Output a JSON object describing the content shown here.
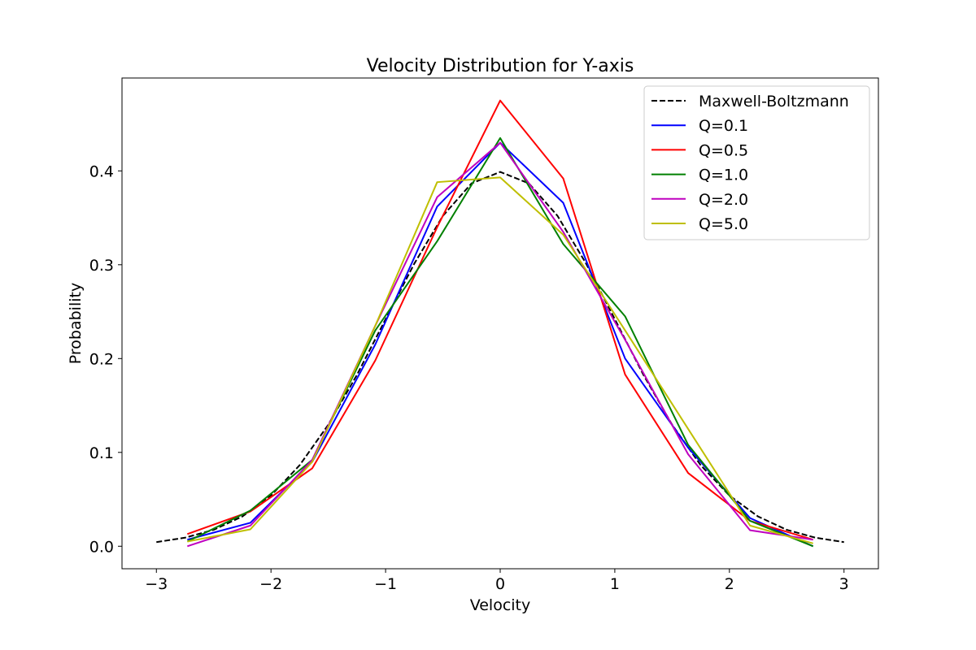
{
  "chart_data": {
    "type": "line",
    "title": "Velocity Distribution for Y-axis",
    "xlabel": "Velocity",
    "ylabel": "Probability",
    "xlim": [
      -3.3,
      3.3
    ],
    "ylim": [
      -0.024,
      0.499
    ],
    "xticks": [
      -3,
      -2,
      -1,
      0,
      1,
      2,
      3
    ],
    "xtick_labels": [
      "−3",
      "−2",
      "−1",
      "0",
      "1",
      "2",
      "3"
    ],
    "yticks": [
      0.0,
      0.1,
      0.2,
      0.3,
      0.4
    ],
    "ytick_labels": [
      "0.0",
      "0.1",
      "0.2",
      "0.3",
      "0.4"
    ],
    "grid": false,
    "legend_position": "top-right",
    "series": [
      {
        "name": "Maxwell-Boltzmann",
        "color": "#000000",
        "dashed": true,
        "x": [
          -3.0,
          -2.75,
          -2.5,
          -2.25,
          -2.0,
          -1.75,
          -1.5,
          -1.25,
          -1.0,
          -0.75,
          -0.5,
          -0.25,
          0.0,
          0.25,
          0.5,
          0.75,
          1.0,
          1.25,
          1.5,
          1.75,
          2.0,
          2.25,
          2.5,
          2.75,
          3.0
        ],
        "y": [
          0.0044,
          0.0091,
          0.0175,
          0.0317,
          0.054,
          0.0863,
          0.1295,
          0.1826,
          0.242,
          0.3011,
          0.3521,
          0.3867,
          0.3989,
          0.3867,
          0.3521,
          0.3011,
          0.242,
          0.1826,
          0.1295,
          0.0863,
          0.054,
          0.0317,
          0.0175,
          0.0091,
          0.0044
        ]
      },
      {
        "name": "Q=0.1",
        "color": "#0000ff",
        "dashed": false,
        "x": [
          -2.73,
          -2.18,
          -1.64,
          -1.09,
          -0.55,
          0.0,
          0.55,
          1.09,
          1.64,
          2.18,
          2.73
        ],
        "y": [
          0.007,
          0.025,
          0.09,
          0.215,
          0.362,
          0.43,
          0.366,
          0.2,
          0.105,
          0.03,
          0.0
        ]
      },
      {
        "name": "Q=0.5",
        "color": "#ff0000",
        "dashed": false,
        "x": [
          -2.73,
          -2.18,
          -1.64,
          -1.09,
          -0.55,
          0.0,
          0.55,
          1.09,
          1.64,
          2.18,
          2.73
        ],
        "y": [
          0.013,
          0.037,
          0.083,
          0.198,
          0.34,
          0.475,
          0.392,
          0.183,
          0.078,
          0.027,
          0.007
        ]
      },
      {
        "name": "Q=1.0",
        "color": "#008000",
        "dashed": false,
        "x": [
          -2.73,
          -2.18,
          -1.64,
          -1.09,
          -0.55,
          0.0,
          0.55,
          1.09,
          1.64,
          2.18,
          2.73
        ],
        "y": [
          0.005,
          0.038,
          0.092,
          0.23,
          0.325,
          0.435,
          0.322,
          0.245,
          0.108,
          0.027,
          0.0
        ]
      },
      {
        "name": "Q=2.0",
        "color": "#bf00bf",
        "dashed": false,
        "x": [
          -2.73,
          -2.18,
          -1.64,
          -1.09,
          -0.55,
          0.0,
          0.55,
          1.09,
          1.64,
          2.18,
          2.73
        ],
        "y": [
          0.0,
          0.022,
          0.092,
          0.235,
          0.372,
          0.43,
          0.335,
          0.22,
          0.098,
          0.017,
          0.007
        ]
      },
      {
        "name": "Q=5.0",
        "color": "#bfbf00",
        "dashed": false,
        "x": [
          -2.73,
          -2.18,
          -1.64,
          -1.09,
          -0.55,
          0.0,
          0.55,
          1.09,
          1.64,
          2.18,
          2.73
        ],
        "y": [
          0.005,
          0.018,
          0.09,
          0.235,
          0.388,
          0.393,
          0.332,
          0.23,
          0.125,
          0.022,
          0.003
        ]
      }
    ]
  }
}
